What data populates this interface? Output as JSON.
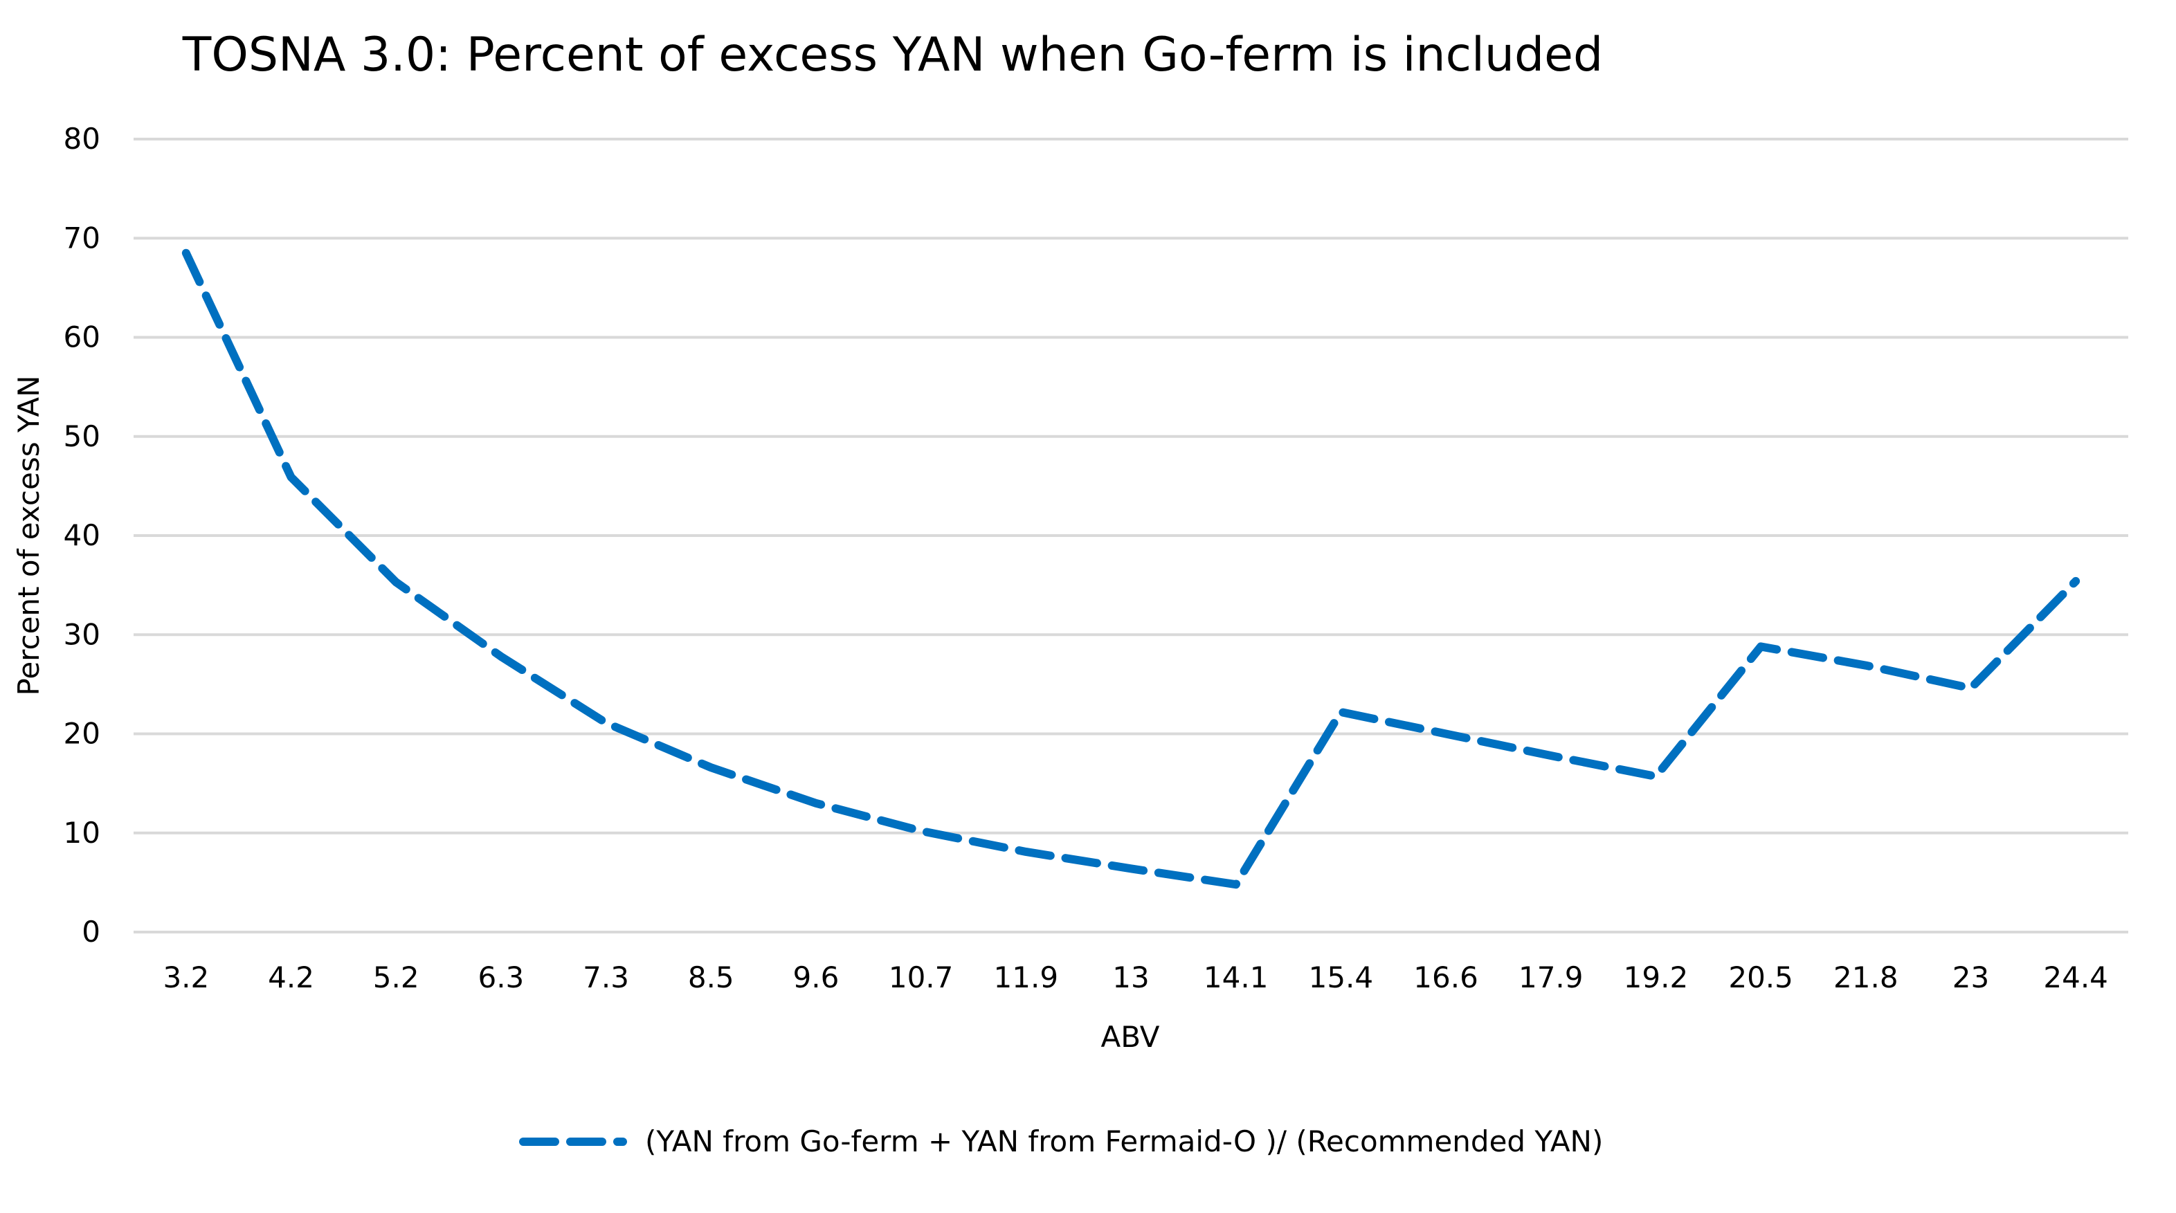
{
  "chart_data": {
    "type": "line",
    "title": "TOSNA 3.0: Percent of excess YAN when Go-ferm is included",
    "xlabel": "ABV",
    "ylabel": "Percent of excess YAN",
    "ylim": [
      0,
      80
    ],
    "yticks": [
      "0",
      "10",
      "20",
      "30",
      "40",
      "50",
      "60",
      "70",
      "80"
    ],
    "grid": true,
    "legend": "bottom",
    "categories": [
      "3.2",
      "4.2",
      "5.2",
      "6.3",
      "7.3",
      "8.5",
      "9.6",
      "10.7",
      "11.9",
      "13",
      "14.1",
      "15.4",
      "16.6",
      "17.9",
      "19.2",
      "20.5",
      "21.8",
      "23",
      "24.4"
    ],
    "series": [
      {
        "name": "(YAN from Go-ferm + YAN from Fermaid-O )/ (Recommended YAN)",
        "color": "#0070C0",
        "line_style": "dashed",
        "values": [
          68.5,
          45.9,
          35.3,
          27.8,
          21.1,
          16.6,
          13.0,
          10.2,
          8.1,
          6.4,
          4.8,
          22.2,
          20.0,
          17.8,
          15.7,
          28.8,
          26.9,
          24.6,
          35.4
        ]
      }
    ]
  }
}
